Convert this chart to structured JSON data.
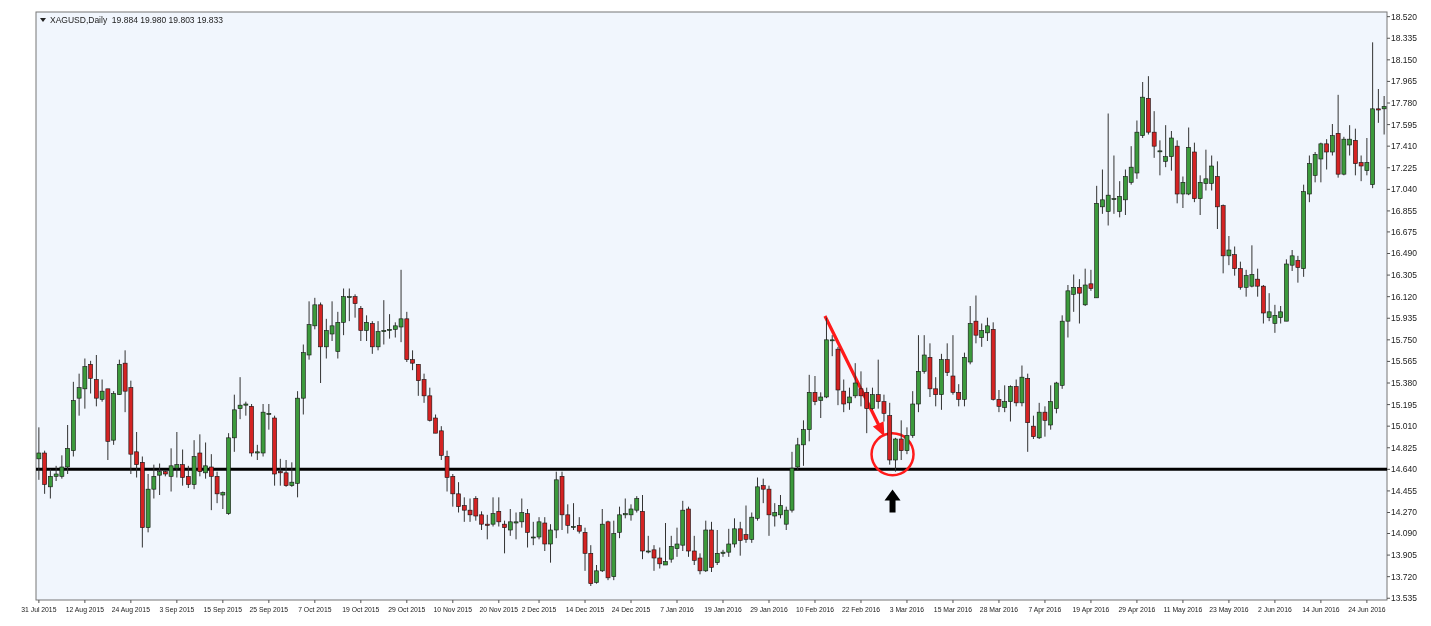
{
  "chart_data": {
    "type": "candlestick",
    "title": "XAGUSD,Daily  19.884 19.980 19.803 19.833",
    "categories": [
      "31 Jul 2015",
      null,
      null,
      null,
      null,
      null,
      null,
      null,
      "12 Aug 2015",
      null,
      null,
      null,
      null,
      null,
      null,
      null,
      "24 Aug 2015",
      null,
      null,
      null,
      null,
      null,
      null,
      null,
      "3 Sep 2015",
      null,
      null,
      null,
      null,
      null,
      null,
      null,
      "15 Sep 2015",
      null,
      null,
      null,
      null,
      null,
      null,
      null,
      "25 Sep 2015",
      null,
      null,
      null,
      null,
      null,
      null,
      null,
      "7 Oct 2015",
      null,
      null,
      null,
      null,
      null,
      null,
      null,
      "19 Oct 2015",
      null,
      null,
      null,
      null,
      null,
      null,
      null,
      "29 Oct 2015",
      null,
      null,
      null,
      null,
      null,
      null,
      null,
      "10 Nov 2015",
      null,
      null,
      null,
      null,
      null,
      null,
      null,
      "20 Nov 2015",
      null,
      null,
      null,
      null,
      null,
      null,
      "2 Dec 2015",
      null,
      null,
      null,
      null,
      null,
      null,
      null,
      "14 Dec 2015",
      null,
      null,
      null,
      null,
      null,
      null,
      null,
      "24 Dec 2015",
      null,
      null,
      null,
      null,
      null,
      null,
      null,
      "7 Jan 2016",
      null,
      null,
      null,
      null,
      null,
      null,
      null,
      "19 Jan 2016",
      null,
      null,
      null,
      null,
      null,
      null,
      null,
      "29 Jan 2016",
      null,
      null,
      null,
      null,
      null,
      null,
      null,
      "10 Feb 2016",
      null,
      null,
      null,
      null,
      null,
      null,
      null,
      "22 Feb 2016",
      null,
      null,
      null,
      null,
      null,
      null,
      null,
      "3 Mar 2016",
      null,
      null,
      null,
      null,
      null,
      null,
      null,
      "15 Mar 2016",
      null,
      null,
      null,
      null,
      null,
      null,
      null,
      "28 Mar 2016",
      null,
      null,
      null,
      null,
      null,
      null,
      null,
      "7 Apr 2016",
      null,
      null,
      null,
      null,
      null,
      null,
      null,
      "19 Apr 2016",
      null,
      null,
      null,
      null,
      null,
      null,
      null,
      "29 Apr 2016",
      null,
      null,
      null,
      null,
      null,
      null,
      null,
      "11 May 2016",
      null,
      null,
      null,
      null,
      null,
      null,
      null,
      "23 May 2016",
      null,
      null,
      null,
      null,
      null,
      null,
      null,
      "2 Jun 2016",
      null,
      null,
      null,
      null,
      null,
      null,
      null,
      "14 Jun 2016",
      null,
      null,
      null,
      null,
      null,
      null,
      null,
      "24 Jun 2016",
      null,
      null,
      null
    ],
    "ohlc": [
      [
        14.73,
        15.0,
        14.55,
        14.78
      ],
      [
        14.78,
        14.8,
        14.43,
        14.51
      ],
      [
        14.49,
        14.64,
        14.39,
        14.58
      ],
      [
        14.58,
        14.67,
        14.54,
        14.6
      ],
      [
        14.58,
        14.76,
        14.56,
        14.66
      ],
      [
        14.66,
        15.02,
        14.6,
        14.82
      ],
      [
        14.8,
        15.39,
        14.75,
        15.23
      ],
      [
        15.25,
        15.46,
        15.1,
        15.34
      ],
      [
        15.33,
        15.59,
        15.16,
        15.52
      ],
      [
        15.54,
        15.57,
        15.29,
        15.42
      ],
      [
        15.41,
        15.62,
        15.18,
        15.25
      ],
      [
        15.24,
        15.41,
        15.22,
        15.31
      ],
      [
        15.33,
        15.33,
        14.72,
        14.88
      ],
      [
        14.89,
        15.31,
        14.85,
        15.29
      ],
      [
        15.28,
        15.58,
        15.28,
        15.54
      ],
      [
        15.55,
        15.66,
        15.13,
        15.31
      ],
      [
        15.34,
        15.4,
        14.6,
        14.77
      ],
      [
        14.79,
        14.96,
        14.57,
        14.68
      ],
      [
        14.7,
        14.75,
        13.97,
        14.14
      ],
      [
        14.14,
        14.6,
        14.1,
        14.47
      ],
      [
        14.47,
        14.68,
        14.39,
        14.58
      ],
      [
        14.59,
        14.69,
        14.42,
        14.62
      ],
      [
        14.62,
        14.63,
        14.58,
        14.6
      ],
      [
        14.58,
        14.82,
        14.45,
        14.67
      ],
      [
        14.65,
        14.96,
        14.57,
        14.68
      ],
      [
        14.68,
        14.81,
        14.5,
        14.57
      ],
      [
        14.58,
        14.67,
        14.48,
        14.51
      ],
      [
        14.51,
        14.89,
        14.47,
        14.75
      ],
      [
        14.78,
        14.94,
        14.58,
        14.62
      ],
      [
        14.61,
        14.87,
        14.56,
        14.67
      ],
      [
        14.66,
        14.77,
        14.29,
        14.58
      ],
      [
        14.58,
        14.62,
        14.35,
        14.43
      ],
      [
        14.42,
        14.45,
        14.3,
        14.44
      ],
      [
        14.26,
        14.95,
        14.25,
        14.91
      ],
      [
        14.91,
        15.28,
        14.79,
        15.15
      ],
      [
        15.16,
        15.43,
        15.07,
        15.19
      ],
      [
        15.19,
        15.22,
        15.1,
        15.2
      ],
      [
        15.18,
        15.2,
        14.75,
        14.78
      ],
      [
        14.78,
        14.85,
        14.72,
        14.79
      ],
      [
        14.78,
        15.2,
        14.75,
        15.13
      ],
      [
        15.11,
        15.2,
        14.98,
        15.12
      ],
      [
        15.08,
        15.1,
        14.5,
        14.6
      ],
      [
        14.62,
        14.73,
        14.5,
        14.61
      ],
      [
        14.61,
        14.72,
        14.49,
        14.5
      ],
      [
        14.5,
        14.7,
        14.49,
        14.53
      ],
      [
        14.52,
        15.31,
        14.4,
        15.25
      ],
      [
        15.25,
        15.71,
        15.11,
        15.64
      ],
      [
        15.62,
        16.08,
        15.58,
        15.88
      ],
      [
        15.87,
        16.11,
        15.84,
        16.05
      ],
      [
        16.05,
        16.07,
        15.38,
        15.69
      ],
      [
        15.69,
        15.93,
        15.59,
        15.83
      ],
      [
        15.8,
        16.08,
        15.74,
        15.87
      ],
      [
        15.65,
        15.99,
        15.59,
        15.9
      ],
      [
        15.9,
        16.19,
        15.79,
        16.12
      ],
      [
        16.12,
        16.19,
        15.91,
        16.12
      ],
      [
        16.12,
        16.14,
        15.94,
        16.06
      ],
      [
        16.02,
        16.04,
        15.74,
        15.83
      ],
      [
        15.83,
        15.96,
        15.74,
        15.9
      ],
      [
        15.89,
        15.91,
        15.63,
        15.69
      ],
      [
        15.69,
        15.91,
        15.66,
        15.82
      ],
      [
        15.82,
        16.09,
        15.71,
        15.83
      ],
      [
        15.83,
        15.97,
        15.76,
        15.84
      ],
      [
        15.84,
        15.9,
        15.77,
        15.87
      ],
      [
        15.86,
        16.35,
        15.73,
        15.93
      ],
      [
        15.93,
        15.99,
        15.56,
        15.58
      ],
      [
        15.58,
        15.66,
        15.49,
        15.55
      ],
      [
        15.54,
        15.54,
        15.27,
        15.4
      ],
      [
        15.41,
        15.46,
        15.21,
        15.27
      ],
      [
        15.27,
        15.34,
        15.05,
        15.06
      ],
      [
        15.08,
        15.11,
        14.95,
        14.95
      ],
      [
        14.97,
        15.01,
        14.72,
        14.76
      ],
      [
        14.75,
        14.8,
        14.45,
        14.57
      ],
      [
        14.58,
        14.6,
        14.32,
        14.43
      ],
      [
        14.43,
        14.53,
        14.27,
        14.32
      ],
      [
        14.33,
        14.4,
        14.19,
        14.29
      ],
      [
        14.29,
        14.39,
        14.19,
        14.25
      ],
      [
        14.39,
        14.41,
        14.2,
        14.24
      ],
      [
        14.25,
        14.28,
        14.12,
        14.17
      ],
      [
        14.17,
        14.25,
        14.04,
        14.16
      ],
      [
        14.17,
        14.4,
        14.15,
        14.26
      ],
      [
        14.28,
        14.4,
        14.15,
        14.19
      ],
      [
        14.17,
        14.2,
        13.92,
        14.14
      ],
      [
        14.12,
        14.3,
        14.07,
        14.19
      ],
      [
        14.18,
        14.27,
        14.04,
        14.19
      ],
      [
        14.19,
        14.39,
        14.14,
        14.27
      ],
      [
        14.26,
        14.3,
        13.97,
        14.1
      ],
      [
        14.06,
        14.19,
        13.99,
        14.06
      ],
      [
        14.06,
        14.23,
        14.04,
        14.19
      ],
      [
        14.18,
        14.23,
        13.94,
        14.0
      ],
      [
        14.0,
        14.17,
        13.84,
        14.12
      ],
      [
        14.12,
        14.62,
        14.05,
        14.55
      ],
      [
        14.58,
        14.62,
        14.12,
        14.25
      ],
      [
        14.25,
        14.34,
        14.09,
        14.16
      ],
      [
        14.15,
        14.35,
        14.12,
        14.15
      ],
      [
        14.16,
        14.23,
        14.09,
        14.11
      ],
      [
        14.1,
        14.14,
        13.77,
        13.92
      ],
      [
        13.92,
        13.99,
        13.64,
        13.66
      ],
      [
        13.67,
        13.82,
        13.66,
        13.77
      ],
      [
        13.77,
        14.3,
        13.76,
        14.17
      ],
      [
        14.19,
        14.2,
        13.69,
        13.71
      ],
      [
        13.72,
        14.2,
        13.69,
        14.09
      ],
      [
        14.1,
        14.32,
        14.05,
        14.25
      ],
      [
        14.25,
        14.39,
        14.22,
        14.26
      ],
      [
        14.25,
        14.34,
        14.2,
        14.3
      ],
      [
        14.29,
        14.41,
        14.27,
        14.39
      ],
      [
        14.28,
        14.42,
        13.87,
        13.94
      ],
      [
        13.94,
        14.07,
        13.92,
        13.94
      ],
      [
        13.95,
        13.99,
        13.77,
        13.88
      ],
      [
        13.88,
        13.97,
        13.79,
        13.83
      ],
      [
        13.82,
        14.18,
        13.82,
        13.85
      ],
      [
        13.87,
        14.07,
        13.84,
        13.98
      ],
      [
        13.96,
        14.14,
        13.89,
        14.0
      ],
      [
        13.99,
        14.37,
        13.94,
        14.29
      ],
      [
        14.3,
        14.32,
        13.89,
        13.94
      ],
      [
        13.94,
        14.07,
        13.82,
        13.86
      ],
      [
        13.88,
        13.92,
        13.74,
        13.77
      ],
      [
        13.77,
        14.2,
        13.76,
        14.12
      ],
      [
        14.12,
        14.19,
        13.76,
        13.8
      ],
      [
        13.84,
        14.12,
        13.82,
        13.92
      ],
      [
        13.92,
        13.95,
        13.89,
        13.93
      ],
      [
        13.93,
        14.13,
        13.89,
        14.0
      ],
      [
        14.0,
        14.22,
        13.97,
        14.13
      ],
      [
        14.13,
        14.19,
        13.9,
        14.03
      ],
      [
        14.08,
        14.33,
        14.01,
        14.04
      ],
      [
        14.04,
        14.27,
        14.01,
        14.23
      ],
      [
        14.22,
        14.57,
        14.2,
        14.49
      ],
      [
        14.5,
        14.56,
        14.35,
        14.47
      ],
      [
        14.47,
        14.5,
        14.07,
        14.25
      ],
      [
        14.24,
        14.35,
        14.15,
        14.27
      ],
      [
        14.25,
        14.42,
        14.22,
        14.33
      ],
      [
        14.17,
        14.32,
        14.12,
        14.29
      ],
      [
        14.29,
        14.79,
        14.27,
        14.65
      ],
      [
        14.66,
        14.91,
        14.63,
        14.85
      ],
      [
        14.85,
        15.06,
        14.67,
        14.98
      ],
      [
        14.98,
        15.45,
        14.88,
        15.3
      ],
      [
        15.3,
        15.44,
        15.19,
        15.22
      ],
      [
        15.23,
        15.3,
        15.08,
        15.26
      ],
      [
        15.26,
        15.94,
        15.25,
        15.75
      ],
      [
        15.75,
        15.79,
        15.61,
        15.75
      ],
      [
        15.67,
        15.69,
        15.19,
        15.32
      ],
      [
        15.31,
        15.41,
        15.13,
        15.2
      ],
      [
        15.21,
        15.34,
        15.15,
        15.26
      ],
      [
        15.27,
        15.55,
        15.25,
        15.38
      ],
      [
        15.33,
        15.48,
        15.18,
        15.27
      ],
      [
        15.3,
        15.34,
        14.95,
        15.16
      ],
      [
        15.16,
        15.34,
        15.15,
        15.28
      ],
      [
        15.28,
        15.58,
        15.16,
        15.22
      ],
      [
        15.22,
        15.28,
        15.05,
        15.12
      ],
      [
        15.1,
        15.21,
        14.68,
        14.72
      ],
      [
        14.72,
        14.91,
        14.62,
        14.9
      ],
      [
        14.9,
        15.06,
        14.72,
        14.8
      ],
      [
        14.8,
        15.0,
        14.77,
        14.93
      ],
      [
        14.93,
        15.31,
        14.91,
        15.2
      ],
      [
        15.2,
        15.79,
        15.13,
        15.48
      ],
      [
        15.48,
        15.79,
        15.46,
        15.62
      ],
      [
        15.6,
        15.72,
        15.26,
        15.33
      ],
      [
        15.33,
        15.43,
        15.18,
        15.28
      ],
      [
        15.28,
        15.63,
        15.15,
        15.58
      ],
      [
        15.58,
        15.72,
        15.44,
        15.47
      ],
      [
        15.44,
        15.79,
        15.28,
        15.3
      ],
      [
        15.3,
        15.37,
        15.18,
        15.24
      ],
      [
        15.24,
        15.64,
        15.18,
        15.6
      ],
      [
        15.56,
        16.04,
        15.54,
        15.89
      ],
      [
        15.91,
        16.13,
        15.72,
        15.79
      ],
      [
        15.77,
        15.89,
        15.69,
        15.83
      ],
      [
        15.81,
        15.94,
        15.74,
        15.87
      ],
      [
        15.84,
        15.9,
        15.23,
        15.24
      ],
      [
        15.24,
        15.32,
        15.13,
        15.18
      ],
      [
        15.17,
        15.36,
        15.13,
        15.22
      ],
      [
        15.22,
        15.36,
        15.05,
        15.35
      ],
      [
        15.35,
        15.41,
        15.18,
        15.21
      ],
      [
        15.21,
        15.53,
        15.18,
        15.43
      ],
      [
        15.42,
        15.46,
        14.79,
        15.04
      ],
      [
        15.01,
        15.1,
        14.9,
        14.92
      ],
      [
        14.91,
        15.21,
        14.9,
        15.13
      ],
      [
        15.13,
        15.18,
        14.92,
        15.06
      ],
      [
        15.02,
        15.36,
        14.98,
        15.22
      ],
      [
        15.16,
        15.39,
        15.12,
        15.38
      ],
      [
        15.36,
        15.96,
        15.33,
        15.91
      ],
      [
        15.91,
        16.22,
        15.77,
        16.17
      ],
      [
        16.14,
        16.31,
        15.99,
        16.2
      ],
      [
        16.2,
        16.27,
        15.89,
        16.15
      ],
      [
        16.05,
        16.36,
        16.04,
        16.22
      ],
      [
        16.23,
        16.35,
        16.17,
        16.19
      ],
      [
        16.11,
        17.07,
        16.11,
        16.92
      ],
      [
        16.89,
        17.21,
        16.83,
        16.95
      ],
      [
        16.85,
        17.69,
        16.73,
        16.99
      ],
      [
        16.96,
        17.33,
        16.83,
        16.96
      ],
      [
        16.85,
        17.11,
        16.8,
        16.98
      ],
      [
        16.95,
        17.21,
        16.82,
        17.15
      ],
      [
        17.1,
        17.41,
        17.08,
        17.23
      ],
      [
        17.18,
        17.63,
        17.13,
        17.53
      ],
      [
        17.5,
        17.96,
        17.48,
        17.83
      ],
      [
        17.82,
        18.01,
        17.51,
        17.53
      ],
      [
        17.53,
        17.71,
        17.31,
        17.41
      ],
      [
        17.37,
        17.46,
        17.16,
        17.37
      ],
      [
        17.28,
        17.59,
        17.23,
        17.32
      ],
      [
        17.32,
        17.54,
        17.2,
        17.48
      ],
      [
        17.41,
        17.46,
        16.92,
        17.0
      ],
      [
        17.0,
        17.15,
        16.88,
        17.1
      ],
      [
        17.0,
        17.57,
        16.99,
        17.4
      ],
      [
        17.36,
        17.44,
        16.93,
        16.96
      ],
      [
        16.96,
        17.16,
        16.82,
        17.1
      ],
      [
        17.09,
        17.38,
        17.03,
        17.13
      ],
      [
        17.09,
        17.33,
        17.03,
        17.24
      ],
      [
        17.15,
        17.28,
        16.7,
        16.89
      ],
      [
        16.9,
        16.91,
        16.32,
        16.47
      ],
      [
        16.47,
        16.64,
        16.39,
        16.52
      ],
      [
        16.48,
        16.55,
        16.3,
        16.36
      ],
      [
        16.36,
        16.42,
        16.18,
        16.2
      ],
      [
        16.2,
        16.35,
        16.12,
        16.3
      ],
      [
        16.21,
        16.56,
        16.2,
        16.31
      ],
      [
        16.27,
        16.36,
        16.12,
        16.21
      ],
      [
        16.21,
        16.22,
        15.89,
        15.98
      ],
      [
        15.94,
        16.15,
        15.91,
        15.99
      ],
      [
        15.89,
        16.05,
        15.81,
        15.96
      ],
      [
        15.94,
        16.04,
        15.89,
        15.99
      ],
      [
        15.91,
        16.44,
        15.91,
        16.4
      ],
      [
        16.39,
        16.52,
        16.34,
        16.47
      ],
      [
        16.43,
        16.47,
        16.24,
        16.37
      ],
      [
        16.36,
        17.08,
        16.29,
        17.02
      ],
      [
        17.0,
        17.33,
        16.93,
        17.26
      ],
      [
        17.16,
        17.36,
        17.1,
        17.34
      ],
      [
        17.3,
        17.44,
        17.1,
        17.43
      ],
      [
        17.43,
        17.47,
        17.21,
        17.36
      ],
      [
        17.36,
        17.6,
        17.33,
        17.5
      ],
      [
        17.52,
        17.85,
        17.14,
        17.17
      ],
      [
        17.17,
        17.49,
        17.16,
        17.47
      ],
      [
        17.42,
        17.59,
        17.33,
        17.47
      ],
      [
        17.46,
        17.56,
        17.16,
        17.26
      ],
      [
        17.27,
        17.33,
        17.11,
        17.24
      ],
      [
        17.2,
        17.48,
        17.16,
        17.27
      ],
      [
        17.08,
        18.3,
        17.05,
        17.73
      ],
      [
        17.73,
        17.9,
        17.61,
        17.72
      ],
      [
        17.73,
        17.84,
        17.51,
        17.75
      ]
    ],
    "ylim": [
      13.52,
      18.56
    ],
    "yticks": [
      {
        "value": 13.535,
        "label": "13.535"
      },
      {
        "value": 13.72,
        "label": "13.720"
      },
      {
        "value": 13.905,
        "label": "13.905"
      },
      {
        "value": 14.09,
        "label": "14.090"
      },
      {
        "value": 14.27,
        "label": "14.270"
      },
      {
        "value": 14.455,
        "label": "14.455"
      },
      {
        "value": 14.64,
        "label": "14.640"
      },
      {
        "value": 14.825,
        "label": "14.825"
      },
      {
        "value": 15.01,
        "label": "15.010"
      },
      {
        "value": 15.195,
        "label": "15.195"
      },
      {
        "value": 15.38,
        "label": "15.380"
      },
      {
        "value": 15.565,
        "label": "15.565"
      },
      {
        "value": 15.75,
        "label": "15.750"
      },
      {
        "value": 15.935,
        "label": "15.935"
      },
      {
        "value": 16.12,
        "label": "16.120"
      },
      {
        "value": 16.305,
        "label": "16.305"
      },
      {
        "value": 16.49,
        "label": "16.490"
      },
      {
        "value": 16.675,
        "label": "16.675"
      },
      {
        "value": 16.855,
        "label": "16.855"
      },
      {
        "value": 17.04,
        "label": "17.040"
      },
      {
        "value": 17.225,
        "label": "17.225"
      },
      {
        "value": 17.41,
        "label": "17.410"
      },
      {
        "value": 17.595,
        "label": "17.595"
      },
      {
        "value": 17.78,
        "label": "17.780"
      },
      {
        "value": 17.965,
        "label": "17.965"
      },
      {
        "value": 18.15,
        "label": "18.150"
      },
      {
        "value": 18.335,
        "label": "18.335"
      },
      {
        "value": 18.52,
        "label": "18.520"
      }
    ],
    "ref_lines": [
      {
        "axis": "y",
        "value": 14.64,
        "color": "#000000"
      }
    ]
  }
}
